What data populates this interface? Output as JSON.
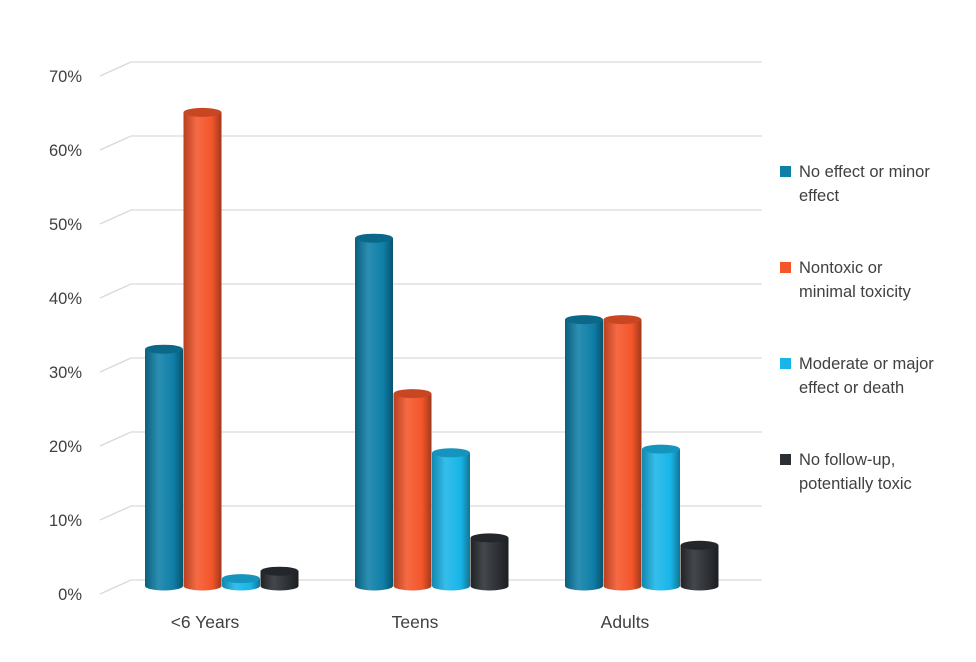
{
  "chart_data": {
    "type": "bar",
    "categories": [
      "<6 Years",
      "Teens",
      "Adults"
    ],
    "series": [
      {
        "name": "No effect or minor effect",
        "color": "#0E7FA7",
        "values": [
          32,
          47,
          36
        ]
      },
      {
        "name": "Nontoxic or minimal toxicity",
        "color": "#F4562A",
        "values": [
          64,
          26,
          36
        ]
      },
      {
        "name": "Moderate or major effect or death",
        "color": "#19B5E8",
        "values": [
          1,
          18,
          18.5
        ]
      },
      {
        "name": "No follow-up, potentially toxic",
        "color": "#2B2E33",
        "values": [
          2,
          6.5,
          5.5
        ]
      }
    ],
    "yticks": [
      "0%",
      "10%",
      "20%",
      "30%",
      "40%",
      "50%",
      "60%",
      "70%"
    ],
    "ylim": [
      0,
      70
    ],
    "grid": true,
    "legend_position": "right",
    "title": "",
    "xlabel": "",
    "ylabel": ""
  },
  "legend": [
    {
      "line1": "No effect or minor",
      "line2": "effect",
      "color": "#0E7FA7"
    },
    {
      "line1": "Nontoxic or",
      "line2": "minimal toxicity",
      "color": "#F4562A"
    },
    {
      "line1": "Moderate or major",
      "line2": "effect or death",
      "color": "#19B5E8"
    },
    {
      "line1": "No follow-up,",
      "line2": "potentially toxic",
      "color": "#2B2E33"
    }
  ]
}
